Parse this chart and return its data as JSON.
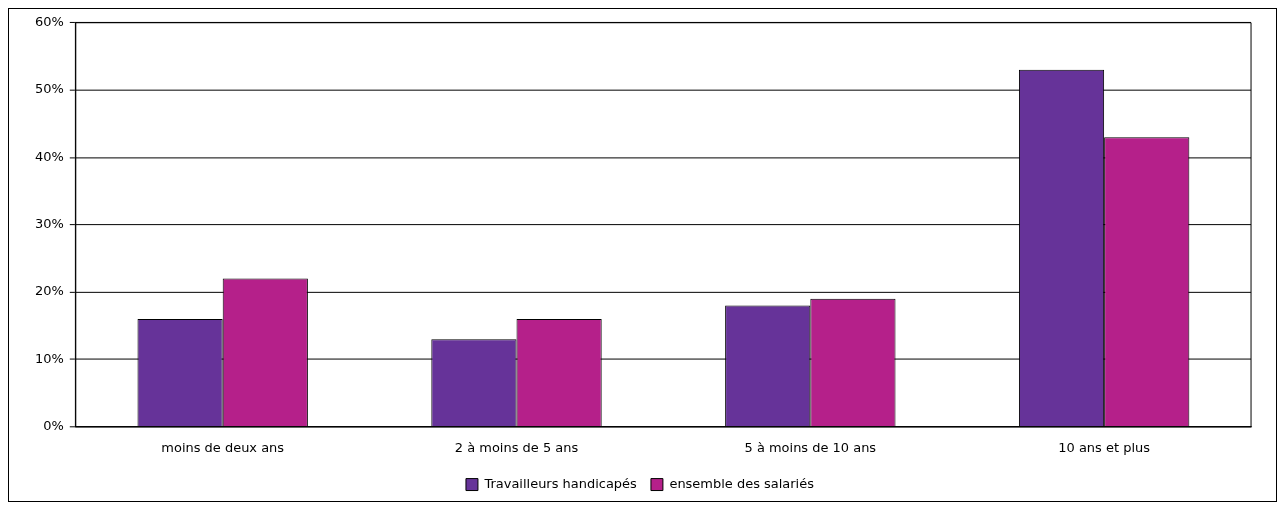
{
  "chart_data": {
    "type": "bar",
    "categories": [
      "moins de deux ans",
      "2 à moins de 5 ans",
      "5 à moins de 10 ans",
      "10 ans et plus"
    ],
    "series": [
      {
        "name": "Travailleurs handicapés",
        "color": "#663399",
        "values": [
          16,
          13,
          18,
          53
        ]
      },
      {
        "name": "ensemble des salariés",
        "color": "#b5208a",
        "values": [
          22,
          16,
          19,
          43
        ]
      }
    ],
    "ylim": [
      0,
      60
    ],
    "yticks": [
      {
        "value": 0,
        "label": "0%"
      },
      {
        "value": 10,
        "label": "10%"
      },
      {
        "value": 20,
        "label": "20%"
      },
      {
        "value": 30,
        "label": "30%"
      },
      {
        "value": 40,
        "label": "40%"
      },
      {
        "value": 50,
        "label": "50%"
      },
      {
        "value": 60,
        "label": "60%"
      }
    ],
    "grid": "y",
    "legend": "bottom"
  }
}
